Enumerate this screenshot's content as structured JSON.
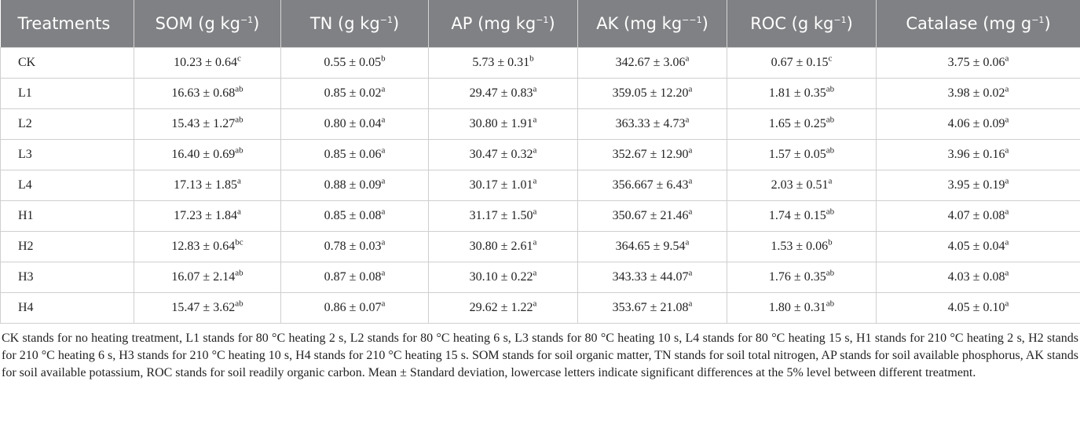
{
  "table": {
    "header": [
      {
        "text": "Treatments"
      },
      {
        "text": "SOM (g kg",
        "sup": "−1",
        "tail": ")"
      },
      {
        "text": "TN (g kg",
        "sup": "−1",
        "tail": ")"
      },
      {
        "text": "AP (mg kg",
        "sup": "−1",
        "tail": ")"
      },
      {
        "text": "AK (mg kg",
        "sup": "−−1",
        "tail": ")"
      },
      {
        "text": "ROC (g kg",
        "sup": "−1",
        "tail": ")"
      },
      {
        "text": "Catalase (mg g",
        "sup": "−1",
        "tail": ")"
      }
    ],
    "rows": [
      {
        "treatment": "CK",
        "cells": [
          [
            "10.23 ± 0.64",
            "c"
          ],
          [
            "0.55 ± 0.05",
            "b"
          ],
          [
            "5.73 ± 0.31",
            "b"
          ],
          [
            "342.67 ± 3.06",
            "a"
          ],
          [
            "0.67 ± 0.15",
            "c"
          ],
          [
            "3.75 ± 0.06",
            "a"
          ]
        ]
      },
      {
        "treatment": "L1",
        "cells": [
          [
            "16.63 ± 0.68",
            "ab"
          ],
          [
            "0.85 ± 0.02",
            "a"
          ],
          [
            "29.47 ± 0.83",
            "a"
          ],
          [
            "359.05 ± 12.20",
            "a"
          ],
          [
            "1.81 ± 0.35",
            "ab"
          ],
          [
            "3.98 ± 0.02",
            "a"
          ]
        ]
      },
      {
        "treatment": "L2",
        "cells": [
          [
            "15.43 ± 1.27",
            "ab"
          ],
          [
            "0.80 ± 0.04",
            "a"
          ],
          [
            "30.80 ± 1.91",
            "a"
          ],
          [
            "363.33 ± 4.73",
            "a"
          ],
          [
            "1.65 ± 0.25",
            "ab"
          ],
          [
            "4.06 ± 0.09",
            "a"
          ]
        ]
      },
      {
        "treatment": "L3",
        "cells": [
          [
            "16.40 ± 0.69",
            "ab"
          ],
          [
            "0.85 ± 0.06",
            "a"
          ],
          [
            "30.47 ± 0.32",
            "a"
          ],
          [
            "352.67 ± 12.90",
            "a"
          ],
          [
            "1.57 ± 0.05",
            "ab"
          ],
          [
            "3.96 ± 0.16",
            "a"
          ]
        ]
      },
      {
        "treatment": "L4",
        "cells": [
          [
            "17.13 ± 1.85",
            "a"
          ],
          [
            "0.88 ± 0.09",
            "a"
          ],
          [
            "30.17 ± 1.01",
            "a"
          ],
          [
            "356.667 ± 6.43",
            "a"
          ],
          [
            "2.03 ± 0.51",
            "a"
          ],
          [
            "3.95 ± 0.19",
            "a"
          ]
        ]
      },
      {
        "treatment": "H1",
        "cells": [
          [
            "17.23 ± 1.84",
            "a"
          ],
          [
            "0.85 ± 0.08",
            "a"
          ],
          [
            "31.17 ± 1.50",
            "a"
          ],
          [
            "350.67 ± 21.46",
            "a"
          ],
          [
            "1.74 ± 0.15",
            "ab"
          ],
          [
            "4.07 ± 0.08",
            "a"
          ]
        ]
      },
      {
        "treatment": "H2",
        "cells": [
          [
            "12.83 ± 0.64",
            "bc"
          ],
          [
            "0.78 ± 0.03",
            "a"
          ],
          [
            "30.80 ± 2.61",
            "a"
          ],
          [
            "364.65 ± 9.54",
            "a"
          ],
          [
            "1.53 ± 0.06",
            "b"
          ],
          [
            "4.05 ± 0.04",
            "a"
          ]
        ]
      },
      {
        "treatment": "H3",
        "cells": [
          [
            "16.07 ± 2.14",
            "ab"
          ],
          [
            "0.87 ± 0.08",
            "a"
          ],
          [
            "30.10 ± 0.22",
            "a"
          ],
          [
            "343.33 ± 44.07",
            "a"
          ],
          [
            "1.76 ± 0.35",
            "ab"
          ],
          [
            "4.03 ± 0.08",
            "a"
          ]
        ]
      },
      {
        "treatment": "H4",
        "cells": [
          [
            "15.47 ± 3.62",
            "ab"
          ],
          [
            "0.86 ± 0.07",
            "a"
          ],
          [
            "29.62 ± 1.22",
            "a"
          ],
          [
            "353.67 ± 21.08",
            "a"
          ],
          [
            "1.80 ± 0.31",
            "ab"
          ],
          [
            "4.05 ± 0.10",
            "a"
          ]
        ]
      }
    ],
    "footnote": "CK stands for no heating treatment, L1 stands for 80 °C heating 2 s, L2 stands for 80 °C heating 6 s, L3 stands for 80 °C heating 10 s, L4 stands for 80 °C heating 15 s, H1 stands for 210 °C heating 2 s, H2 stands for 210 °C heating 6 s, H3 stands for 210 °C heating 10 s, H4 stands for 210 °C heating 15 s. SOM stands for soil organic matter, TN stands for soil total nitrogen, AP stands for soil available phosphorus, AK stands for soil available potassium, ROC stands for soil readily organic carbon. Mean ± Standard deviation, lowercase letters indicate significant differences at the 5% level between different treatment."
  }
}
